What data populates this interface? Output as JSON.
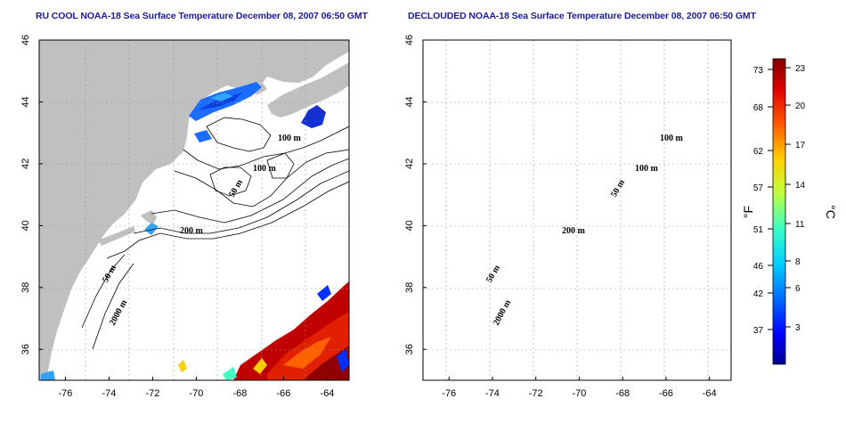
{
  "panels": [
    {
      "id": "raw",
      "title": "RU COOL NOAA-18 Sea Surface Temperature December 08, 2007 06:50 GMT"
    },
    {
      "id": "declouded",
      "title": "DECLOUDED NOAA-18 Sea Surface Temperature December 08, 2007 06:50 GMT"
    }
  ],
  "map": {
    "lon_range": [
      -77,
      -63
    ],
    "lat_range": [
      35,
      46
    ],
    "lon_ticks": [
      -76,
      -74,
      -72,
      -70,
      -68,
      -66,
      -64
    ],
    "lat_ticks": [
      36,
      38,
      40,
      42,
      44,
      46
    ],
    "lon_tick_labels": [
      "-76",
      "-74",
      "-72",
      "-70",
      "-68",
      "-66",
      "-64"
    ],
    "lat_tick_labels": [
      "36",
      "38",
      "40",
      "42",
      "44",
      "46"
    ],
    "grid": "dotted",
    "land_color": "#c0c0c0",
    "contour_labels": [
      "100 m",
      "100 m",
      "50 m",
      "200 m",
      "50 m",
      "2000 m"
    ]
  },
  "colorbar": {
    "fahrenheit_ticks": [
      "73",
      "68",
      "62",
      "57",
      "51",
      "46",
      "42",
      "37"
    ],
    "celsius_ticks": [
      "23",
      "20",
      "17",
      "14",
      "11",
      "8",
      "6",
      "3"
    ],
    "fahrenheit_unit": "°F",
    "celsius_unit": "°C",
    "colors": [
      "#00008f",
      "#0000ff",
      "#0060ff",
      "#00c0ff",
      "#40ffc0",
      "#c0ff40",
      "#ffd000",
      "#ff6000",
      "#e00000",
      "#800000"
    ]
  }
}
